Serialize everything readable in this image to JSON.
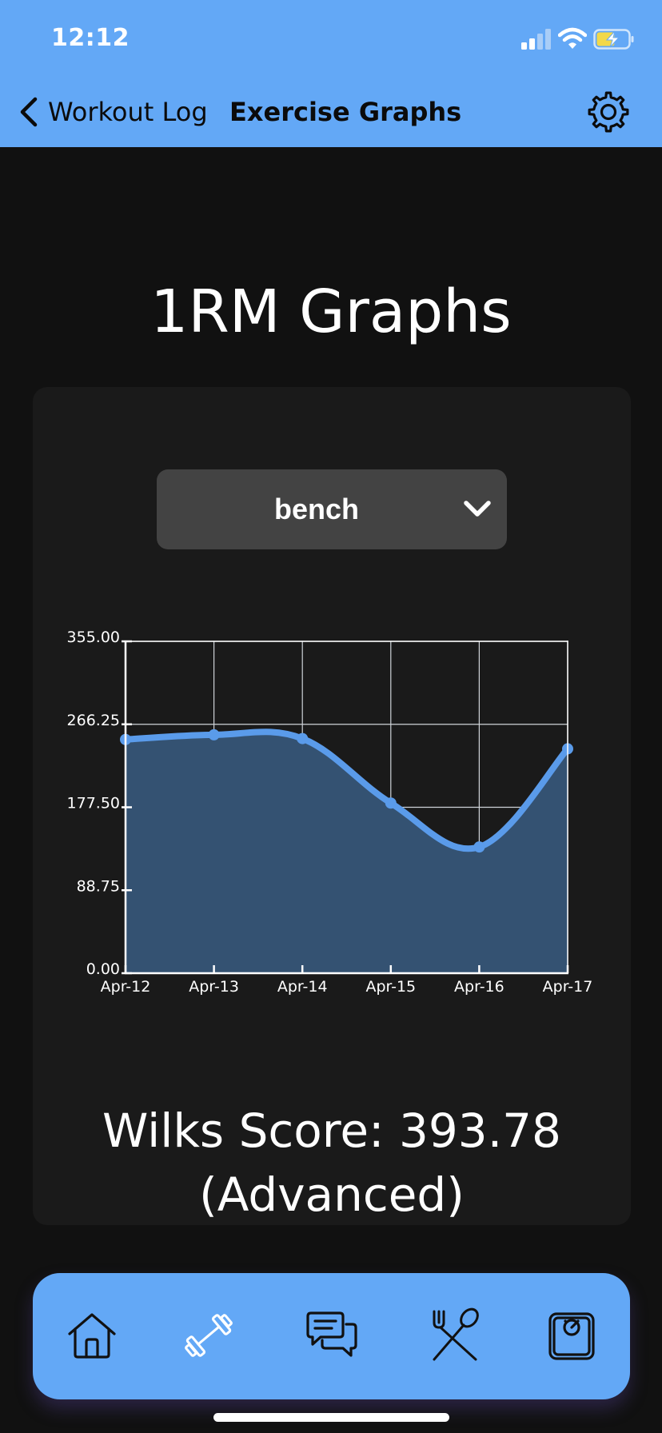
{
  "status_bar": {
    "time": "12:12"
  },
  "nav": {
    "back_label": "Workout Log",
    "title": "Exercise Graphs",
    "back_icon": "chevron-left-icon",
    "settings_icon": "gear-icon"
  },
  "page": {
    "title": "1RM Graphs"
  },
  "exercise_select": {
    "value": "bench",
    "icon": "chevron-down-icon"
  },
  "wilks": {
    "line1": "Wilks Score: 393.78",
    "line2": "(Advanced)"
  },
  "tabs": [
    {
      "name": "home",
      "icon": "home-icon"
    },
    {
      "name": "workouts",
      "icon": "dumbbell-icon"
    },
    {
      "name": "messages",
      "icon": "chat-bubbles-icon"
    },
    {
      "name": "nutrition",
      "icon": "fork-spoon-icon"
    },
    {
      "name": "weight",
      "icon": "scale-icon"
    }
  ],
  "colors": {
    "accent": "#63a8f6",
    "background": "#111111",
    "card": "#1a1a1a",
    "line": "#5a9bea",
    "fill": "#345272",
    "select": "#434343"
  },
  "chart_data": {
    "type": "area",
    "title": "",
    "xlabel": "",
    "ylabel": "",
    "categories": [
      "Apr-12",
      "Apr-13",
      "Apr-14",
      "Apr-15",
      "Apr-16",
      "Apr-17"
    ],
    "values": [
      250,
      255,
      251,
      182,
      135,
      240
    ],
    "ylim": [
      0,
      355
    ],
    "y_ticks": [
      "0.00",
      "88.75",
      "177.50",
      "266.25",
      "355.00"
    ],
    "grid": true,
    "curve": "smooth"
  }
}
